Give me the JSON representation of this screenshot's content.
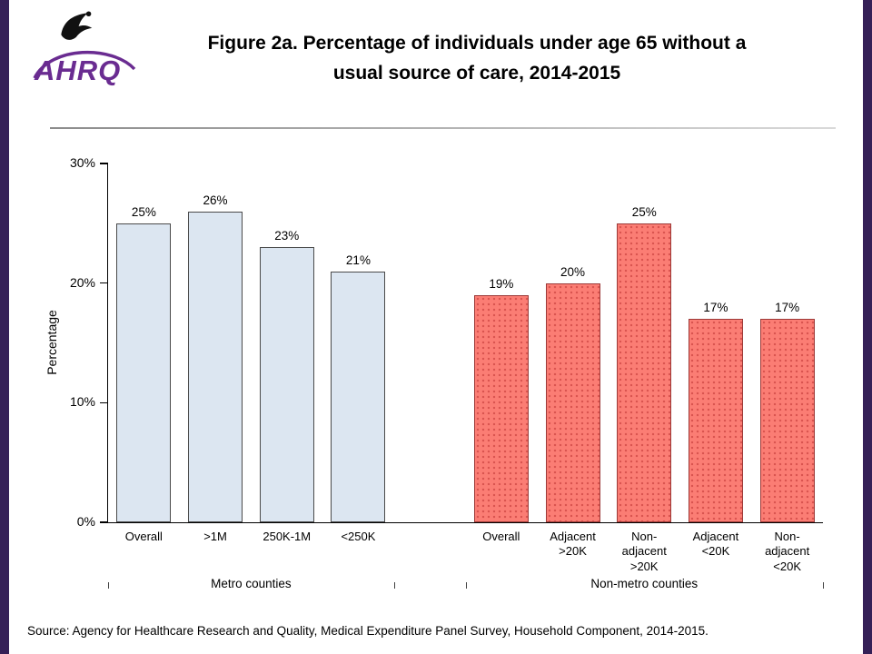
{
  "page": {
    "logo_text": "AHRQ",
    "title_lines": [
      "Figure 2a. Percentage of individuals under age 65 without a",
      "usual source of care, 2014-2015"
    ],
    "source": "Source: Agency for Healthcare Research and Quality, Medical Expenditure Panel Survey, Household Component, 2014-2015."
  },
  "colors": {
    "accent_purple": "#6A2C91",
    "side_strip": "#352057",
    "axis": "#000000"
  },
  "chart_data": {
    "type": "bar",
    "title": "Figure 2a. Percentage of individuals under age 65 without a usual source of care, 2014-2015",
    "xlabel": "",
    "ylabel": "Percentage",
    "ylim": [
      0,
      30
    ],
    "yticks": [
      "0%",
      "10%",
      "20%",
      "30%"
    ],
    "grid": false,
    "legend": "none",
    "value_suffix": "%",
    "groups": [
      {
        "label": "Metro counties",
        "fill": "#DCE6F1",
        "border": "#4A4A4A",
        "pattern": "solid",
        "dot_color": "",
        "categories": [
          "Overall",
          ">1M",
          "250K-1M",
          "<250K"
        ],
        "values": [
          25,
          26,
          23,
          21
        ]
      },
      {
        "label": "Non-metro counties",
        "fill": "#FB7D74",
        "border": "#9C3A38",
        "pattern": "dots",
        "dot_color": "#D9534F",
        "categories": [
          "Overall",
          "Adjacent\n>20K",
          "Non-\nadjacent\n>20K",
          "Adjacent\n<20K",
          "Non-\nadjacent\n<20K"
        ],
        "values": [
          19,
          20,
          25,
          17,
          17
        ]
      }
    ]
  }
}
